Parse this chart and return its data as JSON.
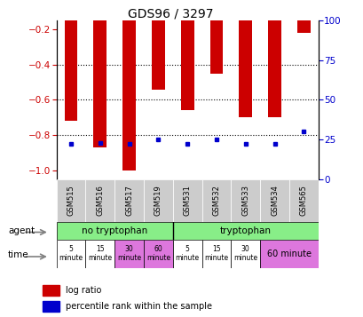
{
  "title": "GDS96 / 3297",
  "samples": [
    "GSM515",
    "GSM516",
    "GSM517",
    "GSM519",
    "GSM531",
    "GSM532",
    "GSM533",
    "GSM534",
    "GSM565"
  ],
  "log_ratio": [
    -0.72,
    -0.87,
    -1.0,
    -0.54,
    -0.66,
    -0.45,
    -0.7,
    -0.7,
    -0.22
  ],
  "percentile": [
    22,
    23,
    22,
    25,
    22,
    25,
    22,
    22,
    30
  ],
  "ylim_left": [
    -1.05,
    -0.15
  ],
  "ylim_right": [
    0,
    100
  ],
  "yticks_left": [
    -1.0,
    -0.8,
    -0.6,
    -0.4,
    -0.2
  ],
  "yticks_right": [
    0,
    25,
    50,
    75,
    100
  ],
  "bar_color": "#cc0000",
  "dot_color": "#0000cc",
  "agent_green": "#88ee88",
  "time_white": "#ffffff",
  "time_pink": "#dd77dd",
  "sample_gray": "#cccccc",
  "legend_bar_label": "log ratio",
  "legend_dot_label": "percentile rank within the sample",
  "no_trp_times": [
    "5\nminute",
    "15\nminute",
    "30\nminute",
    "60\nminute"
  ],
  "no_trp_colors": [
    "#ffffff",
    "#ffffff",
    "#dd77dd",
    "#dd77dd"
  ],
  "trp_times": [
    "5\nminute",
    "15\nminute",
    "30\nminute"
  ],
  "trp_colors": [
    "#ffffff",
    "#ffffff",
    "#ffffff"
  ],
  "trp_last": "60 minute",
  "trp_last_color": "#dd77dd"
}
